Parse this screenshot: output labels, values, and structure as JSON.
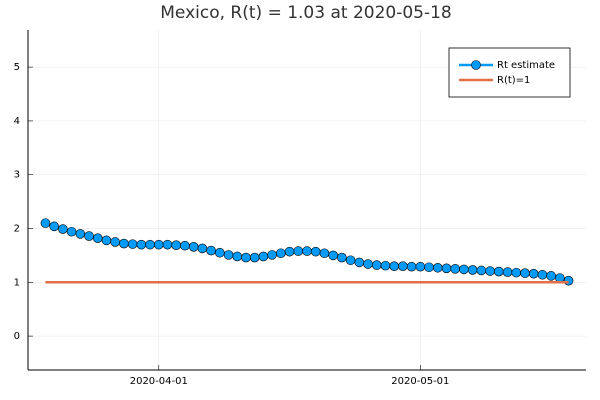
{
  "chart_data": {
    "type": "line",
    "title": "Mexico, R(t) = 1.03 at 2020-05-18",
    "x": [
      "2020-03-19",
      "2020-03-20",
      "2020-03-21",
      "2020-03-22",
      "2020-03-23",
      "2020-03-24",
      "2020-03-25",
      "2020-03-26",
      "2020-03-27",
      "2020-03-28",
      "2020-03-29",
      "2020-03-30",
      "2020-03-31",
      "2020-04-01",
      "2020-04-02",
      "2020-04-03",
      "2020-04-04",
      "2020-04-05",
      "2020-04-06",
      "2020-04-07",
      "2020-04-08",
      "2020-04-09",
      "2020-04-10",
      "2020-04-11",
      "2020-04-12",
      "2020-04-13",
      "2020-04-14",
      "2020-04-15",
      "2020-04-16",
      "2020-04-17",
      "2020-04-18",
      "2020-04-19",
      "2020-04-20",
      "2020-04-21",
      "2020-04-22",
      "2020-04-23",
      "2020-04-24",
      "2020-04-25",
      "2020-04-26",
      "2020-04-27",
      "2020-04-28",
      "2020-04-29",
      "2020-04-30",
      "2020-05-01",
      "2020-05-02",
      "2020-05-03",
      "2020-05-04",
      "2020-05-05",
      "2020-05-06",
      "2020-05-07",
      "2020-05-08",
      "2020-05-09",
      "2020-05-10",
      "2020-05-11",
      "2020-05-12",
      "2020-05-13",
      "2020-05-14",
      "2020-05-15",
      "2020-05-16",
      "2020-05-17",
      "2020-05-18"
    ],
    "series": [
      {
        "name": "Rt estimate",
        "color": "#009af9",
        "markers": true,
        "values": [
          2.1,
          2.04,
          1.99,
          1.94,
          1.9,
          1.86,
          1.82,
          1.78,
          1.75,
          1.72,
          1.71,
          1.7,
          1.7,
          1.7,
          1.7,
          1.69,
          1.68,
          1.66,
          1.63,
          1.59,
          1.55,
          1.51,
          1.48,
          1.46,
          1.46,
          1.48,
          1.51,
          1.54,
          1.57,
          1.58,
          1.58,
          1.57,
          1.54,
          1.5,
          1.46,
          1.41,
          1.37,
          1.34,
          1.32,
          1.31,
          1.3,
          1.3,
          1.29,
          1.29,
          1.28,
          1.27,
          1.26,
          1.25,
          1.24,
          1.23,
          1.22,
          1.21,
          1.2,
          1.19,
          1.18,
          1.17,
          1.16,
          1.14,
          1.12,
          1.08,
          1.03
        ]
      },
      {
        "name": "R(t)=1",
        "color": "#e26f46",
        "markers": false,
        "values": [
          1,
          1,
          1,
          1,
          1,
          1,
          1,
          1,
          1,
          1,
          1,
          1,
          1,
          1,
          1,
          1,
          1,
          1,
          1,
          1,
          1,
          1,
          1,
          1,
          1,
          1,
          1,
          1,
          1,
          1,
          1,
          1,
          1,
          1,
          1,
          1,
          1,
          1,
          1,
          1,
          1,
          1,
          1,
          1,
          1,
          1,
          1,
          1,
          1,
          1,
          1,
          1,
          1,
          1,
          1,
          1,
          1,
          1,
          1,
          1,
          1
        ]
      }
    ],
    "xlim": [
      "2020-03-17",
      "2020-05-20"
    ],
    "xticks": [
      "2020-04-01",
      "2020-05-01"
    ],
    "ylim": [
      -0.63,
      5.69
    ],
    "yticks": [
      0,
      1,
      2,
      3,
      4,
      5
    ],
    "grid": true,
    "legend": "top-right"
  }
}
